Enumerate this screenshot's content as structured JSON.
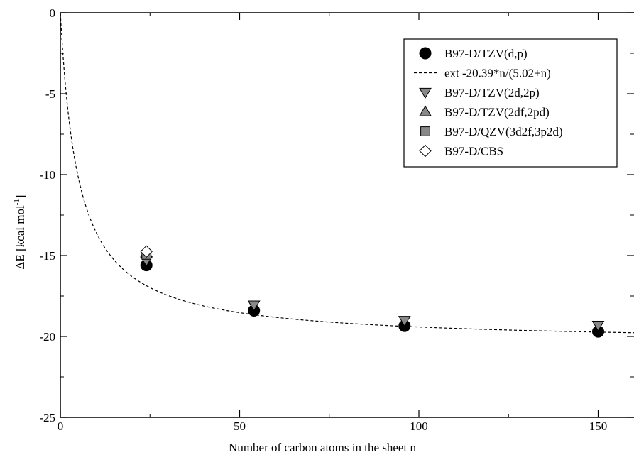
{
  "chart_data": {
    "type": "scatter",
    "xlabel": "Number of carbon atoms in the sheet n",
    "ylabel_main": "ΔE [kcal mol",
    "ylabel_sup": "-1",
    "ylabel_end": "]",
    "xlim": [
      0,
      160
    ],
    "ylim": [
      -25,
      0
    ],
    "x_ticks": [
      0,
      50,
      100,
      150
    ],
    "x_tick_labels": [
      "0",
      "50",
      "100",
      "150"
    ],
    "y_ticks": [
      0,
      -5,
      -10,
      -15,
      -20,
      -25
    ],
    "y_tick_labels": [
      "0",
      "-5",
      "-10",
      "-15",
      "-20",
      "-25"
    ],
    "grid": false,
    "legend_position": "top-right",
    "series": [
      {
        "name": "B97-D/TZV(d,p)",
        "marker": "circle",
        "color": "#000000",
        "x": [
          24,
          54,
          96,
          150
        ],
        "y": [
          -15.6,
          -18.4,
          -19.35,
          -19.7
        ]
      },
      {
        "name": "ext -20.39*n/(5.02+n)",
        "marker": "dashed-line",
        "color": "#000000",
        "fit": {
          "a": -20.39,
          "b": 5.02
        }
      },
      {
        "name": "B97-D/TZV(2d,2p)",
        "marker": "triangle-down",
        "color": "#888888",
        "x": [
          24,
          54,
          96,
          150
        ],
        "y": [
          -15.3,
          -18.05,
          -19.0,
          -19.3
        ]
      },
      {
        "name": "B97-D/TZV(2df,2pd)",
        "marker": "triangle-up",
        "color": "#888888",
        "x": [
          24
        ],
        "y": [
          -14.85
        ]
      },
      {
        "name": "B97-D/QZV(3d2f,3p2d)",
        "marker": "square",
        "color": "#888888",
        "x": [
          24
        ],
        "y": [
          -14.95
        ]
      },
      {
        "name": "B97-D/CBS",
        "marker": "diamond",
        "color": "#ffffff",
        "x": [
          24
        ],
        "y": [
          -14.75
        ]
      }
    ]
  }
}
